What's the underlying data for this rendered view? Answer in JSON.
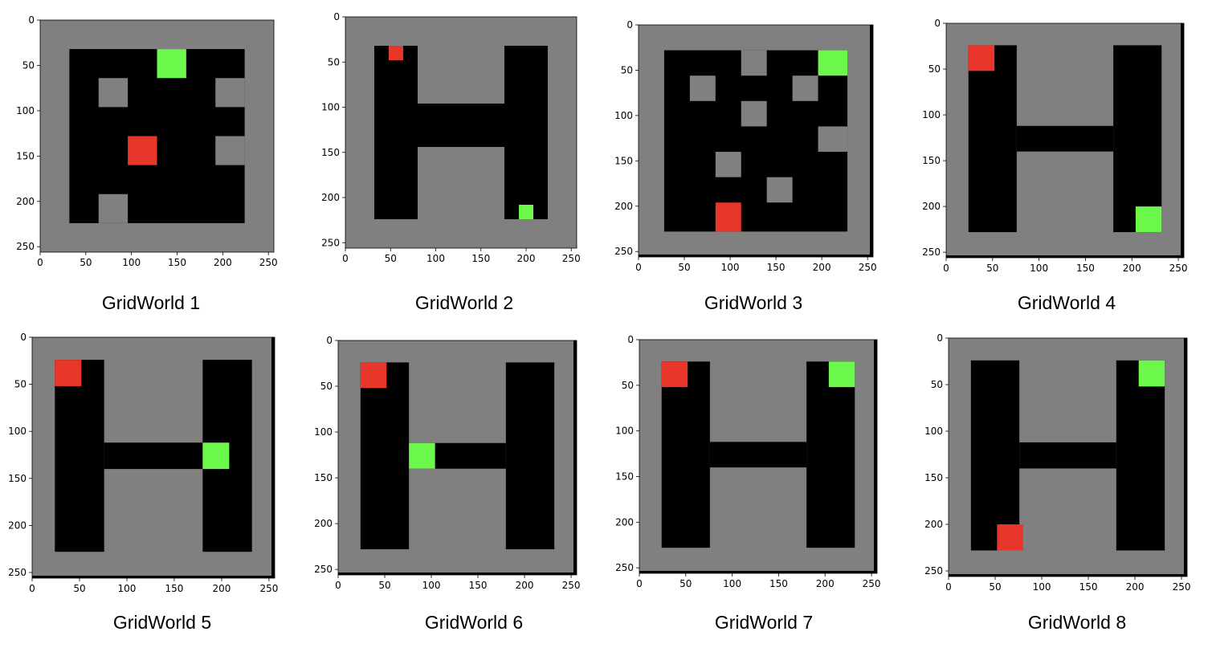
{
  "colors": {
    "wall": "#808080",
    "free": "#000000",
    "start": "#e8362b",
    "goal": "#6cf84a"
  },
  "axis": {
    "range": [
      0,
      256
    ],
    "ticks": [
      0,
      50,
      100,
      150,
      200,
      250
    ]
  },
  "panels": [
    {
      "caption": "GridWorld 1",
      "free": [
        [
          32,
          32,
          224,
          224
        ]
      ],
      "walls": [
        [
          64,
          64,
          96,
          96
        ],
        [
          192,
          64,
          224,
          96
        ],
        [
          192,
          128,
          224,
          160
        ],
        [
          64,
          192,
          96,
          224
        ]
      ],
      "start": [
        96,
        128,
        128,
        160
      ],
      "goal": [
        128,
        32,
        160,
        64
      ]
    },
    {
      "caption": "GridWorld 2",
      "free": [
        [
          32,
          32,
          80,
          224
        ],
        [
          176,
          32,
          224,
          224
        ],
        [
          80,
          96,
          176,
          144
        ]
      ],
      "walls": [],
      "start": [
        48,
        32,
        64,
        48
      ],
      "goal": [
        192,
        208,
        208,
        224
      ]
    },
    {
      "caption": "GridWorld 3",
      "free": [
        [
          28,
          28,
          228,
          228
        ]
      ],
      "walls": [
        [
          112,
          28,
          140,
          56
        ],
        [
          56,
          56,
          84,
          84
        ],
        [
          168,
          56,
          196,
          84
        ],
        [
          112,
          84,
          140,
          112
        ],
        [
          196,
          112,
          228,
          140
        ],
        [
          84,
          140,
          112,
          168
        ],
        [
          140,
          168,
          168,
          196
        ]
      ],
      "start": [
        84,
        196,
        112,
        228
      ],
      "goal": [
        196,
        28,
        228,
        56
      ]
    },
    {
      "caption": "GridWorld 4",
      "free": [
        [
          24,
          24,
          76,
          228
        ],
        [
          180,
          24,
          232,
          228
        ],
        [
          76,
          112,
          180,
          140
        ]
      ],
      "walls": [],
      "start": [
        24,
        24,
        52,
        52
      ],
      "goal": [
        204,
        200,
        232,
        228
      ]
    },
    {
      "caption": "GridWorld 5",
      "free": [
        [
          24,
          24,
          76,
          228
        ],
        [
          180,
          24,
          232,
          228
        ],
        [
          76,
          112,
          180,
          140
        ]
      ],
      "walls": [],
      "start": [
        24,
        24,
        52,
        52
      ],
      "goal": [
        180,
        112,
        208,
        140
      ]
    },
    {
      "caption": "GridWorld 6",
      "free": [
        [
          24,
          24,
          76,
          228
        ],
        [
          180,
          24,
          232,
          228
        ],
        [
          76,
          112,
          180,
          140
        ]
      ],
      "walls": [],
      "start": [
        24,
        24,
        52,
        52
      ],
      "goal": [
        76,
        112,
        104,
        140
      ]
    },
    {
      "caption": "GridWorld 7",
      "free": [
        [
          24,
          24,
          76,
          228
        ],
        [
          180,
          24,
          232,
          228
        ],
        [
          76,
          112,
          180,
          140
        ]
      ],
      "walls": [],
      "start": [
        24,
        24,
        52,
        52
      ],
      "goal": [
        204,
        24,
        232,
        52
      ]
    },
    {
      "caption": "GridWorld 8",
      "free": [
        [
          24,
          24,
          76,
          228
        ],
        [
          180,
          24,
          232,
          228
        ],
        [
          76,
          112,
          180,
          140
        ]
      ],
      "walls": [],
      "start": [
        52,
        200,
        80,
        228
      ],
      "goal": [
        204,
        24,
        232,
        52
      ]
    }
  ]
}
